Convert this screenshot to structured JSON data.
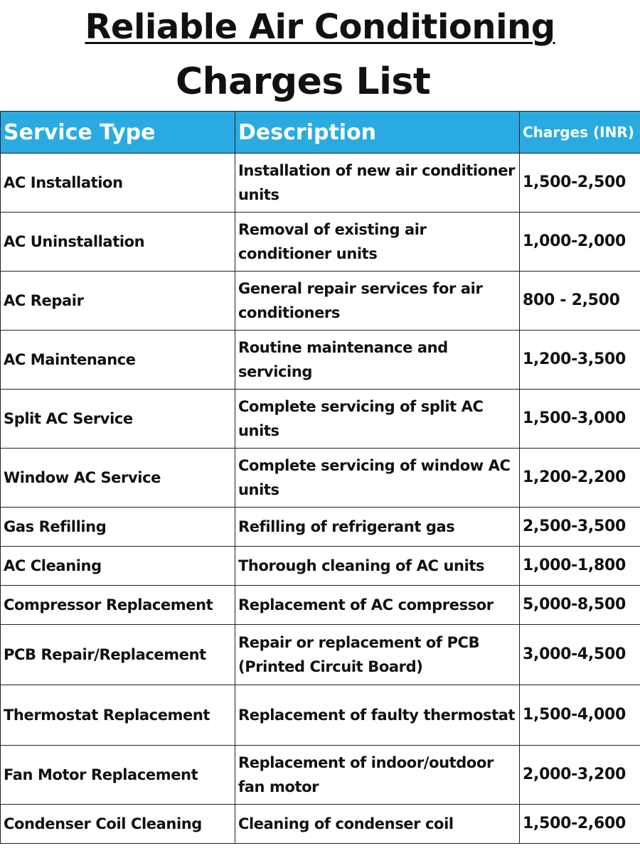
{
  "title": {
    "line1": "Reliable Air Conditioning",
    "line2": "Charges List"
  },
  "table": {
    "headers": {
      "service_type": "Service Type",
      "description": "Description",
      "charges": "Charges (INR)"
    },
    "rows": [
      {
        "service": "AC Installation",
        "description": "Installation of new air conditioner units",
        "charges": "1,500-2,500"
      },
      {
        "service": "AC Uninstallation",
        "description": "Removal of existing air conditioner units",
        "charges": "1,000-2,000"
      },
      {
        "service": "AC Repair",
        "description": "General repair services for air conditioners",
        "charges": "800 - 2,500"
      },
      {
        "service": "AC Maintenance",
        "description": "Routine maintenance and servicing",
        "charges": "1,200-3,500"
      },
      {
        "service": "Split AC Service",
        "description": "Complete servicing of split AC units",
        "charges": "1,500-3,000"
      },
      {
        "service": "Window AC Service",
        "description": "Complete servicing of window AC units",
        "charges": "1,200-2,200"
      },
      {
        "service": "Gas Refilling",
        "description": "Refilling of refrigerant gas",
        "charges": "2,500-3,500"
      },
      {
        "service": "AC Cleaning",
        "description": "Thorough cleaning of AC units",
        "charges": "1,000-1,800"
      },
      {
        "service": "Compressor Replacement",
        "description": "Replacement of AC compressor",
        "charges": "5,000-8,500"
      },
      {
        "service": "PCB Repair/Replacement",
        "description": "Repair or replacement of PCB (Printed Circuit Board)",
        "charges": "3,000-4,500"
      },
      {
        "service": "Thermostat Replacement",
        "description": "Replacement of faulty thermostat",
        "charges": "1,500-4,000"
      },
      {
        "service": "Fan Motor Replacement",
        "description": "Replacement of indoor/outdoor fan motor",
        "charges": "2,000-3,200"
      },
      {
        "service": "Condenser Coil Cleaning",
        "description": "Cleaning of condenser coil",
        "charges": "1,500-2,600"
      }
    ]
  },
  "colors": {
    "header_bg": "#29abe2",
    "header_text": "#ffffff",
    "border": "#222222",
    "text": "#111111"
  }
}
